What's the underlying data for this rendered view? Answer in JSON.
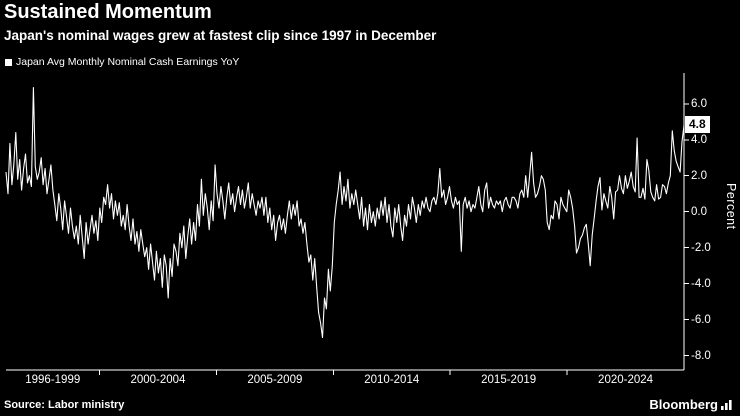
{
  "header": {
    "title": "Sustained Momentum",
    "subtitle": "Japan's nominal wages grew at fastest clip since 1997 in December"
  },
  "legend": {
    "label": "Japan Avg Monthly Nominal Cash Earnings YoY"
  },
  "axis": {
    "y_ticks": [
      "6.0",
      "4.0",
      "2.0",
      "0.0",
      "-2.0",
      "-4.0",
      "-6.0",
      "-8.0"
    ],
    "y_label": "Percent",
    "x_labels": [
      "1996-1999",
      "2000-2004",
      "2005-2009",
      "2010-2014",
      "2015-2019",
      "2020-2024"
    ],
    "current_value": "4.8"
  },
  "footer": {
    "source": "Source: Labor ministry",
    "brand": "Bloomberg"
  },
  "colors": {
    "background": "#000000",
    "line": "#ffffff",
    "axis": "#ffffff",
    "badge_bg": "#ffffff",
    "badge_text": "#000000"
  },
  "chart_data": {
    "type": "line",
    "title": "Sustained Momentum",
    "series_name": "Japan Avg Monthly Nominal Cash Earnings YoY",
    "unit": "Percent",
    "frequency": "monthly",
    "x_start": "1996-01",
    "x_end": "2024-12",
    "x_start_year": 1996,
    "x_end_year": 2025,
    "ylim": [
      -8.8,
      7.6
    ],
    "y_tick_values": [
      6,
      4,
      2,
      0,
      -2,
      -4,
      -6,
      -8
    ],
    "x_tick_years": [
      2000,
      2005,
      2010,
      2015,
      2020
    ],
    "x_label_center_years": [
      1998,
      2002.5,
      2007.5,
      2012.5,
      2017.5,
      2022.5
    ],
    "last_value": 4.8,
    "values": [
      2.2,
      1.0,
      3.8,
      1.5,
      2.6,
      4.4,
      1.8,
      2.9,
      1.2,
      2.4,
      3.2,
      1.6,
      2.0,
      1.4,
      6.9,
      2.5,
      1.8,
      2.2,
      3.0,
      1.5,
      2.4,
      1.0,
      1.8,
      2.6,
      1.2,
      0.4,
      -0.5,
      1.0,
      0.2,
      -1.0,
      0.6,
      -0.3,
      -1.2,
      0.2,
      -0.8,
      -1.5,
      -0.8,
      -1.8,
      -0.2,
      -1.4,
      -2.6,
      -0.6,
      -1.8,
      -1.0,
      -0.2,
      -1.2,
      -0.5,
      -1.6,
      0.2,
      -0.6,
      0.8,
      0.4,
      1.5,
      0.2,
      1.0,
      -0.4,
      0.6,
      -0.2,
      0.5,
      -0.8,
      -0.2,
      -1.0,
      0.4,
      -0.8,
      -1.6,
      -0.4,
      -1.8,
      -1.1,
      -2.2,
      -1.0,
      -1.8,
      -2.5,
      -2.0,
      -3.2,
      -1.8,
      -2.8,
      -3.8,
      -2.2,
      -3.4,
      -2.6,
      -4.2,
      -2.4,
      -3.0,
      -4.8,
      -2.6,
      -3.6,
      -1.8,
      -2.2,
      -3.0,
      -1.2,
      -2.0,
      -0.8,
      -2.6,
      -1.4,
      -0.4,
      -1.8,
      -0.6,
      -1.6,
      0.4,
      -0.8,
      1.8,
      -0.2,
      1.0,
      0.2,
      -1.0,
      0.6,
      -0.5,
      2.6,
      1.0,
      0.2,
      1.4,
      0.6,
      -0.4,
      0.8,
      1.6,
      0.4,
      1.0,
      0.0,
      0.8,
      1.4,
      0.4,
      1.2,
      0.2,
      0.8,
      1.6,
      0.2,
      1.0,
      0.4,
      -0.2,
      0.6,
      0.2,
      0.8,
      -0.2,
      0.8,
      -0.6,
      0.2,
      -1.0,
      -0.2,
      -1.6,
      -0.6,
      -0.2,
      -1.0,
      -0.4,
      -1.2,
      -0.2,
      0.6,
      -0.4,
      0.4,
      -0.2,
      0.6,
      -0.8,
      -0.4,
      -1.2,
      -0.6,
      -1.8,
      -2.8,
      -2.4,
      -3.8,
      -2.6,
      -4.2,
      -5.6,
      -6.2,
      -7.0,
      -4.8,
      -5.4,
      -3.2,
      -4.4,
      -3.0,
      -0.6,
      0.4,
      1.2,
      2.2,
      0.4,
      1.4,
      0.6,
      1.8,
      0.2,
      1.0,
      0.4,
      1.2,
      0.4,
      -0.4,
      0.8,
      -0.8,
      0.2,
      -1.0,
      0.4,
      -0.6,
      0.0,
      -0.8,
      0.2,
      -0.4,
      0.6,
      -0.2,
      0.8,
      -0.6,
      0.4,
      -0.8,
      -1.4,
      0.2,
      -0.6,
      0.4,
      -0.8,
      -1.6,
      -0.2,
      -0.8,
      0.4,
      -0.4,
      0.8,
      0.2,
      -0.6,
      0.4,
      -0.2,
      0.6,
      0.2,
      0.8,
      0.2,
      0.0,
      0.6,
      0.8,
      0.4,
      1.0,
      2.4,
      0.8,
      1.2,
      0.4,
      0.8,
      1.4,
      0.6,
      0.2,
      0.8,
      0.4,
      0.6,
      -2.2,
      0.4,
      0.8,
      0.2,
      0.6,
      0.0,
      0.4,
      0.2,
      0.8,
      1.4,
      0.4,
      0.0,
      1.2,
      1.6,
      0.2,
      0.8,
      0.4,
      0.2,
      0.6,
      0.4,
      0.6,
      0.0,
      0.6,
      0.8,
      0.4,
      0.2,
      0.8,
      0.8,
      0.6,
      0.2,
      1.0,
      1.2,
      0.8,
      2.0,
      0.8,
      2.0,
      3.3,
      1.6,
      0.8,
      1.0,
      1.4,
      2.0,
      1.8,
      1.2,
      -0.6,
      -1.0,
      -0.2,
      -0.4,
      0.6,
      0.4,
      -0.4,
      0.8,
      0.4,
      0.2,
      0.0,
      1.2,
      0.8,
      0.2,
      -0.8,
      -2.3,
      -2.0,
      -1.5,
      -1.3,
      -0.9,
      -0.7,
      -1.8,
      -3.0,
      -1.3,
      -0.4,
      0.6,
      1.4,
      1.9,
      0.1,
      1.0,
      0.6,
      0.2,
      1.4,
      0.8,
      -0.4,
      1.1,
      1.2,
      2.0,
      1.3,
      1.0,
      2.0,
      1.3,
      1.7,
      2.2,
      1.4,
      1.1,
      4.1,
      0.8,
      0.8,
      1.3,
      0.7,
      2.9,
      2.3,
      1.1,
      0.8,
      0.6,
      1.5,
      0.7,
      0.8,
      1.5,
      1.4,
      1.0,
      1.6,
      2.0,
      4.5,
      3.4,
      2.8,
      2.5,
      2.2,
      3.9,
      4.8
    ]
  }
}
